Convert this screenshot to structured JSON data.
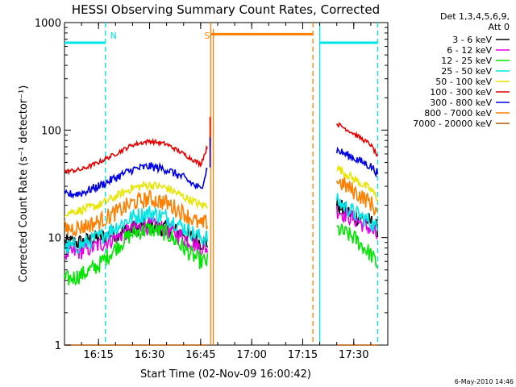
{
  "chart_data": {
    "type": "line",
    "title": "HESSI Observing Summary Count Rates, Corrected",
    "xlabel": "Start Time (02-Nov-09 16:00:42)",
    "ylabel": "Corrected Count Rate (s⁻¹ detector⁻¹)",
    "yscale": "log",
    "ylim": [
      1,
      1000
    ],
    "xlim": [
      "16:05",
      "17:40"
    ],
    "x_ticks": [
      "16:15",
      "16:30",
      "16:45",
      "17:00",
      "17:15",
      "17:30"
    ],
    "y_ticks": [
      "1",
      "10",
      "100",
      "1000"
    ],
    "legend_header": [
      "Det 1,3,4,5,6,9,",
      "Att 0"
    ],
    "legend_position": "right",
    "gap": [
      "16:48",
      "17:20"
    ],
    "markers": [
      {
        "label": "N",
        "time": "16:17",
        "color": "#00e5e5",
        "style": "dashed"
      },
      {
        "label": "S",
        "time": "16:48",
        "color": "#ff7f00",
        "style": "solid"
      },
      {
        "label": "",
        "time": "17:18",
        "color": "#ff7f00",
        "style": "dashed"
      },
      {
        "label": "",
        "time": "17:20",
        "color": "#00e5e5",
        "style": "solid"
      },
      {
        "label": "",
        "time": "17:37",
        "color": "#00e5e5",
        "style": "dashed"
      }
    ],
    "flag_bars": [
      {
        "flag": "night",
        "color": "#00e5e5",
        "start": "16:05",
        "end": "16:17",
        "level": 650
      },
      {
        "flag": "saa",
        "color": "#ff7f00",
        "start": "16:48",
        "end": "17:18",
        "level": 780
      },
      {
        "flag": "night",
        "color": "#00e5e5",
        "start": "17:20",
        "end": "17:37",
        "level": 650
      }
    ],
    "x": [
      "16:05",
      "16:10",
      "16:15",
      "16:20",
      "16:25",
      "16:30",
      "16:35",
      "16:40",
      "16:45",
      "16:47",
      "17:20",
      "17:25",
      "17:30",
      "17:35",
      "17:37"
    ],
    "series": [
      {
        "name": "3 - 6 keV",
        "color": "#000000",
        "values": [
          9,
          9,
          10,
          11,
          12,
          13,
          12,
          11,
          9,
          9,
          null,
          20,
          16,
          14,
          12
        ]
      },
      {
        "name": "6 - 12 keV",
        "color": "#e600e6",
        "values": [
          7,
          7.5,
          8.5,
          10,
          12,
          13,
          12,
          10,
          8,
          8,
          null,
          18,
          15,
          12,
          10
        ]
      },
      {
        "name": "12 - 25 keV",
        "color": "#00e600",
        "values": [
          4,
          4.5,
          5.5,
          8,
          11,
          12,
          11,
          8,
          6,
          6,
          null,
          12,
          10,
          7,
          5.5
        ]
      },
      {
        "name": "25 - 50 keV",
        "color": "#00e6e6",
        "values": [
          8,
          8.5,
          10,
          12.5,
          15.5,
          17,
          15.5,
          12.5,
          10,
          10,
          null,
          22,
          17,
          14,
          12
        ]
      },
      {
        "name": "50 - 100 keV",
        "color": "#e6e600",
        "values": [
          17,
          18,
          20,
          24,
          29,
          31,
          29,
          24,
          20,
          20,
          null,
          45,
          35,
          28,
          23
        ]
      },
      {
        "name": "100 - 300 keV",
        "color": "#e60000",
        "values": [
          41,
          43,
          50,
          60,
          73,
          79,
          74,
          60,
          48,
          70,
          null,
          115,
          93,
          73,
          57
        ]
      },
      {
        "name": "300 - 800 keV",
        "color": "#0000e6",
        "values": [
          25,
          26,
          30,
          36,
          43,
          46,
          43,
          36,
          28,
          45,
          null,
          65,
          55,
          46,
          40
        ]
      },
      {
        "name": "800 - 7000 keV",
        "color": "#ff7f00",
        "values": [
          12,
          12.5,
          14,
          17,
          21,
          23,
          21,
          17,
          13,
          14,
          null,
          34,
          27,
          21,
          17
        ]
      },
      {
        "name": "7000 - 20000 keV",
        "color": "#b25900",
        "values": [
          1,
          1,
          1,
          1,
          1,
          1,
          1,
          1,
          1,
          1,
          null,
          1,
          1,
          1,
          1
        ]
      }
    ]
  },
  "footer": {
    "date": "6-May-2010 14:46"
  }
}
